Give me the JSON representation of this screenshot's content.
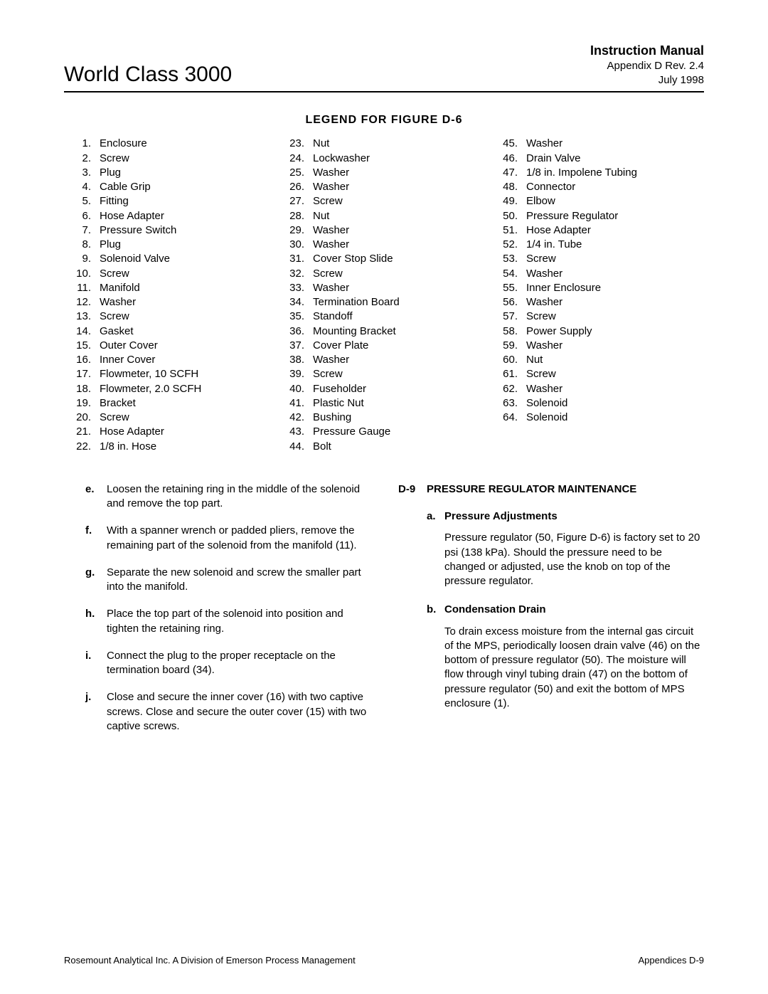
{
  "header": {
    "left": "World Class 3000",
    "right_bold": "Instruction Manual",
    "right_line1": "Appendix D   Rev. 2.4",
    "right_line2": "July 1998"
  },
  "legend_title": "LEGEND  FOR  FIGURE  D-6",
  "legend": {
    "col1": [
      {
        "n": "1.",
        "t": "Enclosure"
      },
      {
        "n": "2.",
        "t": "Screw"
      },
      {
        "n": "3.",
        "t": "Plug"
      },
      {
        "n": "4.",
        "t": "Cable Grip"
      },
      {
        "n": "5.",
        "t": "Fitting"
      },
      {
        "n": "6.",
        "t": "Hose Adapter"
      },
      {
        "n": "7.",
        "t": "Pressure Switch"
      },
      {
        "n": "8.",
        "t": "Plug"
      },
      {
        "n": "9.",
        "t": "Solenoid Valve"
      },
      {
        "n": "10.",
        "t": "Screw"
      },
      {
        "n": "11.",
        "t": "Manifold"
      },
      {
        "n": "12.",
        "t": "Washer"
      },
      {
        "n": "13.",
        "t": "Screw"
      },
      {
        "n": "14.",
        "t": "Gasket"
      },
      {
        "n": "15.",
        "t": "Outer Cover"
      },
      {
        "n": "16.",
        "t": "Inner Cover"
      },
      {
        "n": "17.",
        "t": "Flowmeter, 10 SCFH"
      },
      {
        "n": "18.",
        "t": "Flowmeter, 2.0 SCFH"
      },
      {
        "n": "19.",
        "t": "Bracket"
      },
      {
        "n": "20.",
        "t": "Screw"
      },
      {
        "n": "21.",
        "t": "Hose Adapter"
      },
      {
        "n": "22.",
        "t": "1/8 in. Hose"
      }
    ],
    "col2": [
      {
        "n": "23.",
        "t": "Nut"
      },
      {
        "n": "24.",
        "t": "Lockwasher"
      },
      {
        "n": "25.",
        "t": "Washer"
      },
      {
        "n": "26.",
        "t": "Washer"
      },
      {
        "n": "27.",
        "t": "Screw"
      },
      {
        "n": "28.",
        "t": "Nut"
      },
      {
        "n": "29.",
        "t": "Washer"
      },
      {
        "n": "30.",
        "t": "Washer"
      },
      {
        "n": "31.",
        "t": "Cover Stop Slide"
      },
      {
        "n": "32.",
        "t": "Screw"
      },
      {
        "n": "33.",
        "t": "Washer"
      },
      {
        "n": "34.",
        "t": "Termination Board"
      },
      {
        "n": "35.",
        "t": "Standoff"
      },
      {
        "n": "36.",
        "t": "Mounting Bracket"
      },
      {
        "n": "37.",
        "t": "Cover Plate"
      },
      {
        "n": "38.",
        "t": "Washer"
      },
      {
        "n": "39.",
        "t": "Screw"
      },
      {
        "n": "40.",
        "t": "Fuseholder"
      },
      {
        "n": "41.",
        "t": "Plastic Nut"
      },
      {
        "n": "42.",
        "t": "Bushing"
      },
      {
        "n": "43.",
        "t": "Pressure Gauge"
      },
      {
        "n": "44.",
        "t": "Bolt"
      }
    ],
    "col3": [
      {
        "n": "45.",
        "t": "Washer"
      },
      {
        "n": "46.",
        "t": "Drain Valve"
      },
      {
        "n": "47.",
        "t": "1/8 in. Impolene Tubing"
      },
      {
        "n": "48.",
        "t": "Connector"
      },
      {
        "n": "49.",
        "t": "Elbow"
      },
      {
        "n": "50.",
        "t": "Pressure Regulator"
      },
      {
        "n": "51.",
        "t": "Hose Adapter"
      },
      {
        "n": "52.",
        "t": "1/4 in. Tube"
      },
      {
        "n": "53.",
        "t": "Screw"
      },
      {
        "n": "54.",
        "t": "Washer"
      },
      {
        "n": "55.",
        "t": "Inner Enclosure"
      },
      {
        "n": "56.",
        "t": "Washer"
      },
      {
        "n": "57.",
        "t": "Screw"
      },
      {
        "n": "58.",
        "t": "Power Supply"
      },
      {
        "n": "59.",
        "t": "Washer"
      },
      {
        "n": "60.",
        "t": "Nut"
      },
      {
        "n": "61.",
        "t": "Screw"
      },
      {
        "n": "62.",
        "t": "Washer"
      },
      {
        "n": "63.",
        "t": "Solenoid"
      },
      {
        "n": "64.",
        "t": "Solenoid"
      }
    ]
  },
  "left_steps": [
    {
      "l": "e.",
      "t": "Loosen the retaining ring in the middle of the solenoid and remove the top part."
    },
    {
      "l": "f.",
      "t": "With a spanner wrench or padded pliers, remove the remaining part of the solenoid from the manifold (11)."
    },
    {
      "l": "g.",
      "t": "Separate the new solenoid and screw the smaller part into the manifold."
    },
    {
      "l": "h.",
      "t": "Place the top part of the solenoid into position and tighten the retaining ring."
    },
    {
      "l": "i.",
      "t": "Connect the plug to the proper receptacle on the termination board (34)."
    },
    {
      "l": "j.",
      "t": "Close and secure the inner cover (16) with two captive screws. Close and secure the outer cover (15) with two captive screws."
    }
  ],
  "right_section": {
    "num": "D-9",
    "title": "PRESSURE  REGULATOR  MAINTENANCE",
    "subs": [
      {
        "l": "a.",
        "h": "Pressure Adjustments",
        "b": "Pressure regulator (50, Figure D-6) is factory set to 20 psi (138 kPa). Should the pressure need to be changed or adjusted, use the knob on top of the pressure regulator."
      },
      {
        "l": "b.",
        "h": "Condensation Drain",
        "b": "To drain excess moisture from the internal gas circuit of the MPS, periodically loosen drain valve (46) on the bottom of pressure regulator (50). The moisture will flow through vinyl tubing drain (47) on the bottom of pressure regulator (50) and exit the bottom of MPS enclosure (1)."
      }
    ]
  },
  "footer": {
    "left": "Rosemount Analytical Inc.    A Division of Emerson Process Management",
    "right": "Appendices    D-9"
  }
}
